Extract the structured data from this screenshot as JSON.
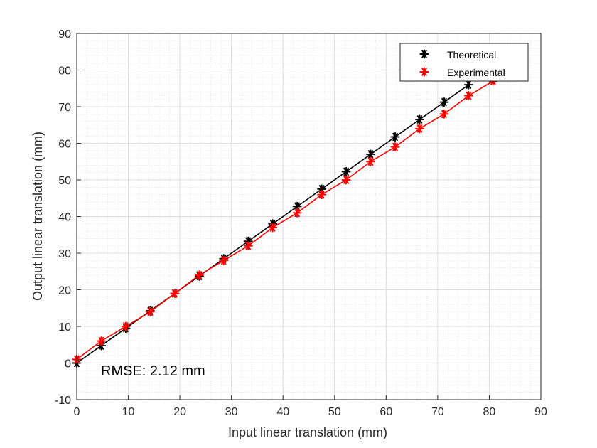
{
  "chart_data": {
    "type": "line",
    "title": "",
    "xlabel": "Input linear translation (mm)",
    "ylabel": "Output linear translation (mm)",
    "xlim": [
      0,
      90
    ],
    "ylim": [
      -10,
      90
    ],
    "xticks": [
      0,
      10,
      20,
      30,
      40,
      50,
      60,
      70,
      80,
      90
    ],
    "yticks": [
      -10,
      0,
      10,
      20,
      30,
      40,
      50,
      60,
      70,
      80,
      90
    ],
    "grid": true,
    "minor_grid": true,
    "legend_position": "top-right",
    "annotation": "RMSE: 2.12 mm",
    "series": [
      {
        "name": "Theoretical",
        "color": "#000000",
        "marker": "asterisk",
        "x": [
          0,
          4.75,
          9.5,
          14.25,
          19.0,
          23.75,
          28.5,
          33.25,
          38.0,
          42.75,
          47.5,
          52.25,
          57.0,
          61.75,
          66.5,
          71.25,
          76.0
        ],
        "y": [
          0,
          4.75,
          9.5,
          14.25,
          19.0,
          23.75,
          28.5,
          33.25,
          38.0,
          42.75,
          47.5,
          52.25,
          57.0,
          61.75,
          66.5,
          71.25,
          76.0
        ]
      },
      {
        "name": "Experimental",
        "color": "#ff0000",
        "marker": "asterisk",
        "x": [
          0,
          4.75,
          9.5,
          14.25,
          19.0,
          23.75,
          28.5,
          33.25,
          38.0,
          42.75,
          47.5,
          52.25,
          57.0,
          61.75,
          66.5,
          71.25,
          76.0,
          80.75
        ],
        "y": [
          1.0,
          6.0,
          10.0,
          14.0,
          19.0,
          24.0,
          28.0,
          32.0,
          37.0,
          41.0,
          46.0,
          50.0,
          55.0,
          59.0,
          64.0,
          68.0,
          73.0,
          77.0
        ]
      }
    ]
  }
}
